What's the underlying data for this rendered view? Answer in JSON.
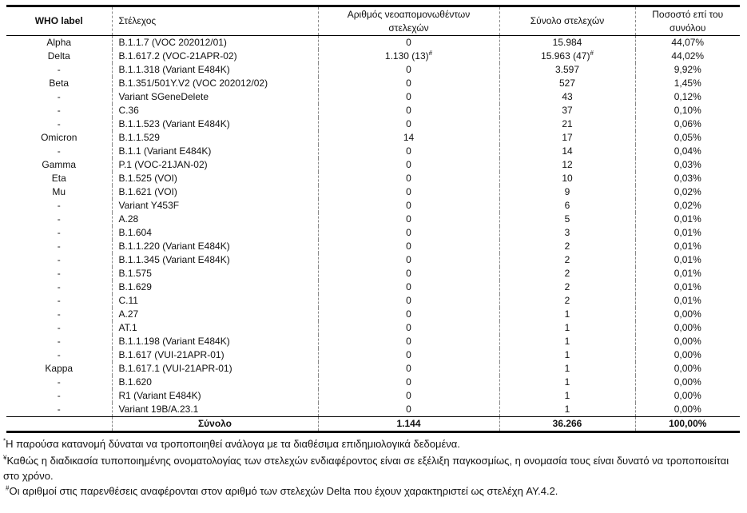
{
  "headers": {
    "who": "WHO label",
    "strain": "Στέλεχος",
    "new": "Αριθμός νεοαπομονωθέντων στελεχών",
    "total": "Σύνολο στελεχών",
    "pct": "Ποσοστό επί του συνόλου"
  },
  "rows": [
    {
      "who": "Alpha",
      "strain": "B.1.1.7 (VOC 202012/01)",
      "new": "0",
      "total": "15.984",
      "pct": "44,07%"
    },
    {
      "who": "Delta",
      "strain": "B.1.617.2 (VOC-21APR-02)",
      "new": "1.130 (13)",
      "new_sup": "#",
      "total": "15.963 (47)",
      "total_sup": "#",
      "pct": "44,02%"
    },
    {
      "who": "-",
      "strain": "B.1.1.318 (Variant E484K)",
      "new": "0",
      "total": "3.597",
      "pct": "9,92%"
    },
    {
      "who": "Beta",
      "strain": "B.1.351/501Y.V2 (VOC 202012/02)",
      "new": "0",
      "total": "527",
      "pct": "1,45%"
    },
    {
      "who": "-",
      "strain": "Variant SGeneDelete",
      "new": "0",
      "total": "43",
      "pct": "0,12%"
    },
    {
      "who": "-",
      "strain": "C.36",
      "new": "0",
      "total": "37",
      "pct": "0,10%"
    },
    {
      "who": "-",
      "strain": "B.1.1.523 (Variant E484K)",
      "new": "0",
      "total": "21",
      "pct": "0,06%"
    },
    {
      "who": "Omicron",
      "strain": "B.1.1.529",
      "new": "14",
      "total": "17",
      "pct": "0,05%"
    },
    {
      "who": "-",
      "strain": "B.1.1 (Variant E484K)",
      "new": "0",
      "total": "14",
      "pct": "0,04%"
    },
    {
      "who": "Gamma",
      "strain": "P.1 (VOC-21JAN-02)",
      "new": "0",
      "total": "12",
      "pct": "0,03%"
    },
    {
      "who": "Eta",
      "strain": "B.1.525 (VOI)",
      "new": "0",
      "total": "10",
      "pct": "0,03%"
    },
    {
      "who": "Mu",
      "strain": "B.1.621 (VOI)",
      "new": "0",
      "total": "9",
      "pct": "0,02%"
    },
    {
      "who": "-",
      "strain": "Variant Y453F",
      "new": "0",
      "total": "6",
      "pct": "0,02%"
    },
    {
      "who": "-",
      "strain": "A.28",
      "new": "0",
      "total": "5",
      "pct": "0,01%"
    },
    {
      "who": "-",
      "strain": "B.1.604",
      "new": "0",
      "total": "3",
      "pct": "0,01%"
    },
    {
      "who": "-",
      "strain": "B.1.1.220 (Variant E484K)",
      "new": "0",
      "total": "2",
      "pct": "0,01%"
    },
    {
      "who": "-",
      "strain": "B.1.1.345 (Variant E484K)",
      "new": "0",
      "total": "2",
      "pct": "0,01%"
    },
    {
      "who": "-",
      "strain": "B.1.575",
      "new": "0",
      "total": "2",
      "pct": "0,01%"
    },
    {
      "who": "-",
      "strain": "B.1.629",
      "new": "0",
      "total": "2",
      "pct": "0,01%"
    },
    {
      "who": "-",
      "strain": "C.11",
      "new": "0",
      "total": "2",
      "pct": "0,01%"
    },
    {
      "who": "-",
      "strain": "A.27",
      "new": "0",
      "total": "1",
      "pct": "0,00%"
    },
    {
      "who": "-",
      "strain": "AT.1",
      "new": "0",
      "total": "1",
      "pct": "0,00%"
    },
    {
      "who": "-",
      "strain": "B.1.1.198 (Variant E484K)",
      "new": "0",
      "total": "1",
      "pct": "0,00%"
    },
    {
      "who": "-",
      "strain": "B.1.617 (VUI-21APR-01)",
      "new": "0",
      "total": "1",
      "pct": "0,00%"
    },
    {
      "who": "Kappa",
      "strain": "B.1.617.1 (VUI-21APR-01)",
      "new": "0",
      "total": "1",
      "pct": "0,00%"
    },
    {
      "who": "-",
      "strain": "B.1.620",
      "new": "0",
      "total": "1",
      "pct": "0,00%"
    },
    {
      "who": "-",
      "strain": "R1 (Variant E484K)",
      "new": "0",
      "total": "1",
      "pct": "0,00%"
    },
    {
      "who": "-",
      "strain": "Variant 19B/A.23.1",
      "new": "0",
      "total": "1",
      "pct": "0,00%"
    }
  ],
  "total_row": {
    "label": "Σύνολο",
    "new": "1.144",
    "total": "36.266",
    "pct": "100,00%"
  },
  "notes": [
    {
      "mark": "*",
      "text": "Η παρούσα κατανομή δύναται να τροποποιηθεί ανάλογα με τα διαθέσιμα επιδημιολογικά δεδομένα."
    },
    {
      "mark": "¥",
      "text": "Καθώς η διαδικασία τυποποιημένης ονοματολογίας των στελεχών ενδιαφέροντος είναι σε εξέλιξη παγκοσμίως, η ονομασία τους είναι δυνατό να τροποποιείται στο χρόνο."
    },
    {
      "mark": "#",
      "text": "Οι αριθμοί στις παρενθέσεις αναφέρονται στον αριθμό των στελεχών Delta που έχουν χαρακτηριστεί ως στελέχη AY.4.2."
    }
  ]
}
